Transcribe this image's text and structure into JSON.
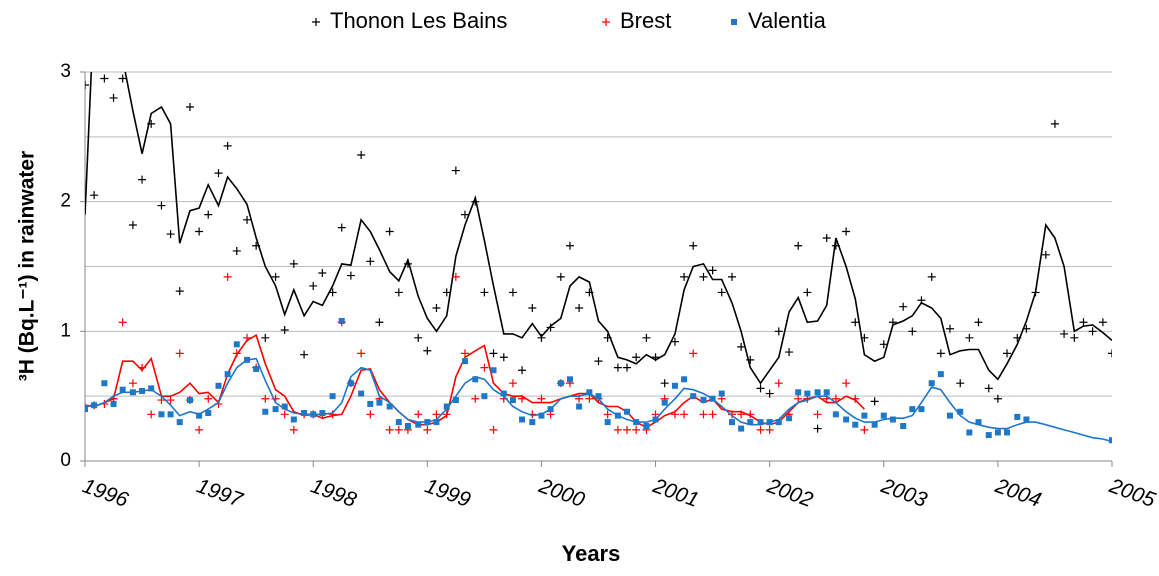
{
  "chart_data": {
    "type": "scatter",
    "xlabel": "Years",
    "ylabel": "³H (Bq.L⁻¹) in rainwater",
    "xlim": [
      1996,
      2005
    ],
    "xticks": [
      1996,
      1997,
      1998,
      1999,
      2000,
      2001,
      2002,
      2003,
      2004,
      2005
    ],
    "ylim": [
      0,
      3
    ],
    "yticks": [
      0,
      1,
      2,
      3
    ],
    "ygrid": [
      0.5,
      1,
      1.5,
      2,
      2.5,
      3
    ],
    "legend": "top",
    "x": [
      1996,
      1996.08,
      1996.17,
      1996.25,
      1996.33,
      1996.42,
      1996.5,
      1996.58,
      1996.67,
      1996.75,
      1996.83,
      1996.92,
      1997,
      1997.08,
      1997.17,
      1997.25,
      1997.33,
      1997.42,
      1997.5,
      1997.58,
      1997.67,
      1997.75,
      1997.83,
      1997.92,
      1998,
      1998.08,
      1998.17,
      1998.25,
      1998.33,
      1998.42,
      1998.5,
      1998.58,
      1998.67,
      1998.75,
      1998.83,
      1998.92,
      1999,
      1999.08,
      1999.17,
      1999.25,
      1999.33,
      1999.42,
      1999.5,
      1999.58,
      1999.67,
      1999.75,
      1999.83,
      1999.92,
      2000,
      2000.08,
      2000.17,
      2000.25,
      2000.33,
      2000.42,
      2000.5,
      2000.58,
      2000.67,
      2000.75,
      2000.83,
      2000.92,
      2001,
      2001.08,
      2001.17,
      2001.25,
      2001.33,
      2001.42,
      2001.5,
      2001.58,
      2001.67,
      2001.75,
      2001.83,
      2001.92,
      2002,
      2002.08,
      2002.17,
      2002.25,
      2002.33,
      2002.42,
      2002.5,
      2002.58,
      2002.67,
      2002.75,
      2002.83,
      2002.92,
      2003,
      2003.08,
      2003.17,
      2003.25,
      2003.33,
      2003.42,
      2003.5,
      2003.58,
      2003.67,
      2003.75,
      2003.83,
      2003.92,
      2004,
      2004.08,
      2004.17,
      2004.25,
      2004.33,
      2004.42,
      2004.5,
      2004.58,
      2004.67,
      2004.75,
      2004.83,
      2004.92,
      2005
    ],
    "series": [
      {
        "name": "Thonon Les Bains",
        "color": "#000000",
        "marker": "plus",
        "values": [
          2.9,
          2.05,
          2.95,
          2.8,
          2.95,
          1.82,
          2.17,
          2.6,
          1.97,
          1.75,
          1.31,
          2.73,
          1.77,
          1.9,
          2.22,
          2.43,
          1.62,
          1.86,
          1.66,
          0.95,
          1.42,
          1.01,
          1.52,
          0.82,
          1.35,
          1.45,
          1.3,
          1.8,
          1.43,
          2.36,
          1.54,
          1.07,
          1.77,
          1.3,
          1.52,
          0.95,
          0.85,
          1.18,
          1.3,
          2.24,
          1.9,
          2.0,
          1.3,
          0.83,
          0.8,
          1.3,
          0.7,
          1.18,
          0.95,
          1.03,
          1.42,
          1.66,
          1.18,
          1.3,
          0.77,
          0.95,
          0.72,
          0.72,
          0.8,
          0.95,
          0.8,
          0.6,
          0.92,
          1.42,
          1.66,
          1.42,
          1.47,
          1.3,
          1.42,
          0.88,
          0.78,
          0.56,
          0.52,
          1.0,
          0.84,
          1.66,
          1.3,
          0.25,
          1.72,
          1.66,
          1.77,
          1.07,
          0.95,
          0.46,
          0.9,
          1.07,
          1.19,
          1.0,
          1.24,
          1.42,
          0.83,
          1.02,
          0.6,
          0.95,
          1.07,
          0.56,
          0.48,
          0.83,
          0.95,
          1.02,
          1.3,
          1.59,
          2.6,
          0.98,
          0.95,
          1.07,
          1.0,
          1.07,
          0.83
        ],
        "trend": [
          1.9,
          3.5,
          3.6,
          3.3,
          3.1,
          2.7,
          2.37,
          2.68,
          2.73,
          2.6,
          1.68,
          1.93,
          1.95,
          2.13,
          1.97,
          2.19,
          2.1,
          1.98,
          1.72,
          1.5,
          1.35,
          1.13,
          1.32,
          1.12,
          1.23,
          1.2,
          1.35,
          1.52,
          1.51,
          1.86,
          1.77,
          1.63,
          1.46,
          1.39,
          1.55,
          1.27,
          1.1,
          1.0,
          1.12,
          1.58,
          1.82,
          2.03,
          1.7,
          1.35,
          0.98,
          0.98,
          0.95,
          1.06,
          0.96,
          1.04,
          1.1,
          1.35,
          1.42,
          1.38,
          1.08,
          1.0,
          0.8,
          0.78,
          0.75,
          0.82,
          0.78,
          0.82,
          0.98,
          1.32,
          1.5,
          1.52,
          1.4,
          1.4,
          1.22,
          1.0,
          0.72,
          0.6,
          0.7,
          0.8,
          1.15,
          1.26,
          1.07,
          1.08,
          1.2,
          1.72,
          1.5,
          1.25,
          0.82,
          0.77,
          0.8,
          1.05,
          1.08,
          1.12,
          1.22,
          1.18,
          1.1,
          0.82,
          0.85,
          0.86,
          0.86,
          0.7,
          0.63,
          0.75,
          0.9,
          1.08,
          1.3,
          1.82,
          1.72,
          1.5,
          1.0,
          1.04,
          1.05,
          0.99,
          0.93
        ]
      },
      {
        "name": "Brest",
        "color": "#ff0000",
        "marker": "plus",
        "values": [
          0.42,
          0.43,
          0.44,
          0.48,
          1.07,
          0.6,
          0.72,
          0.36,
          0.47,
          0.47,
          0.83,
          0.47,
          0.24,
          0.48,
          0.44,
          1.42,
          0.83,
          0.95,
          0.72,
          0.48,
          0.48,
          0.36,
          0.24,
          0.36,
          0.36,
          0.36,
          0.36,
          1.07,
          0.6,
          0.83,
          0.36,
          0.48,
          0.24,
          0.24,
          0.24,
          0.36,
          0.24,
          0.36,
          0.36,
          1.42,
          0.83,
          0.48,
          0.72,
          0.24,
          0.48,
          0.6,
          0.48,
          0.36,
          0.48,
          0.36,
          0.6,
          0.6,
          0.48,
          0.48,
          0.48,
          0.36,
          0.24,
          0.24,
          0.24,
          0.24,
          0.36,
          0.48,
          0.36,
          0.36,
          0.83,
          0.36,
          0.36,
          0.48,
          0.36,
          0.36,
          0.36,
          0.24,
          0.24,
          0.6,
          0.36,
          0.48,
          0.48,
          0.36,
          0.48,
          0.48,
          0.6,
          0.48,
          0.24,
          null,
          null,
          null,
          null,
          null,
          null,
          null,
          null,
          null,
          null,
          null,
          null,
          null,
          null,
          null,
          null,
          null,
          null,
          null,
          null,
          null,
          null,
          null,
          null,
          null,
          null
        ],
        "trend": [
          0.43,
          0.42,
          0.45,
          0.48,
          0.77,
          0.77,
          0.7,
          0.79,
          0.5,
          0.5,
          0.53,
          0.6,
          0.52,
          0.53,
          0.45,
          0.67,
          0.82,
          0.93,
          0.97,
          0.75,
          0.55,
          0.5,
          0.38,
          0.35,
          0.36,
          0.33,
          0.35,
          0.36,
          0.5,
          0.7,
          0.71,
          0.55,
          0.45,
          0.38,
          0.32,
          0.28,
          0.28,
          0.3,
          0.35,
          0.65,
          0.8,
          0.85,
          0.89,
          0.6,
          0.52,
          0.5,
          0.5,
          0.45,
          0.45,
          0.45,
          0.48,
          0.5,
          0.52,
          0.52,
          0.45,
          0.42,
          0.42,
          0.38,
          0.3,
          0.26,
          0.3,
          0.35,
          0.38,
          0.45,
          0.5,
          0.45,
          0.48,
          0.4,
          0.38,
          0.38,
          0.35,
          0.3,
          0.28,
          0.3,
          0.38,
          0.45,
          0.48,
          0.5,
          0.45,
          0.45,
          0.5,
          0.47,
          0.4,
          null,
          null,
          null,
          null,
          null,
          null,
          null,
          null,
          null,
          null,
          null,
          null,
          null,
          null,
          null,
          null,
          null,
          null,
          null,
          null,
          null,
          null,
          null,
          null,
          null,
          null
        ]
      },
      {
        "name": "Valentia",
        "color": "#1f77c8",
        "marker": "square",
        "values": [
          0.4,
          0.43,
          0.6,
          0.44,
          0.55,
          0.53,
          0.54,
          0.56,
          0.36,
          0.36,
          0.3,
          0.47,
          0.35,
          0.37,
          0.58,
          0.67,
          0.9,
          0.78,
          0.71,
          0.38,
          0.4,
          0.42,
          0.32,
          0.37,
          0.36,
          0.37,
          0.5,
          1.08,
          0.6,
          0.52,
          0.44,
          0.45,
          0.42,
          0.3,
          0.27,
          0.28,
          0.3,
          0.3,
          0.42,
          0.47,
          0.77,
          0.63,
          0.5,
          0.7,
          0.52,
          0.47,
          0.32,
          0.3,
          0.35,
          0.4,
          0.6,
          0.63,
          0.42,
          0.53,
          0.5,
          0.3,
          0.35,
          0.38,
          0.3,
          0.27,
          0.32,
          0.45,
          0.58,
          0.63,
          0.5,
          0.47,
          0.48,
          0.52,
          0.3,
          0.25,
          0.3,
          0.3,
          0.3,
          0.3,
          0.33,
          0.53,
          0.52,
          0.53,
          0.53,
          0.36,
          0.32,
          0.28,
          0.35,
          0.28,
          0.35,
          0.32,
          0.27,
          0.4,
          0.4,
          0.6,
          0.67,
          0.35,
          0.38,
          0.22,
          0.3,
          0.2,
          0.22,
          0.22,
          0.34,
          0.32,
          null,
          null,
          null,
          null,
          null,
          null,
          null,
          null,
          0.16
        ],
        "trend": [
          0.43,
          0.42,
          0.45,
          0.5,
          0.53,
          0.53,
          0.54,
          0.55,
          0.5,
          0.43,
          0.35,
          0.38,
          0.36,
          0.4,
          0.45,
          0.6,
          0.72,
          0.78,
          0.79,
          0.62,
          0.45,
          0.4,
          0.37,
          0.36,
          0.36,
          0.36,
          0.37,
          0.45,
          0.65,
          0.72,
          0.7,
          0.5,
          0.45,
          0.38,
          0.32,
          0.3,
          0.3,
          0.32,
          0.4,
          0.5,
          0.6,
          0.65,
          0.63,
          0.55,
          0.5,
          0.42,
          0.38,
          0.35,
          0.36,
          0.4,
          0.48,
          0.5,
          0.5,
          0.52,
          0.48,
          0.4,
          0.35,
          0.32,
          0.3,
          0.3,
          0.32,
          0.4,
          0.48,
          0.56,
          0.55,
          0.52,
          0.48,
          0.42,
          0.35,
          0.3,
          0.28,
          0.28,
          0.3,
          0.32,
          0.4,
          0.45,
          0.47,
          0.5,
          0.5,
          0.45,
          0.38,
          0.33,
          0.3,
          0.3,
          0.32,
          0.33,
          0.33,
          0.35,
          0.45,
          0.57,
          0.55,
          0.45,
          0.35,
          0.3,
          0.28,
          0.26,
          0.25,
          0.25,
          0.28,
          0.3,
          0.3,
          0.28,
          0.26,
          0.24,
          0.22,
          0.2,
          0.18,
          0.17,
          0.15
        ]
      }
    ]
  }
}
